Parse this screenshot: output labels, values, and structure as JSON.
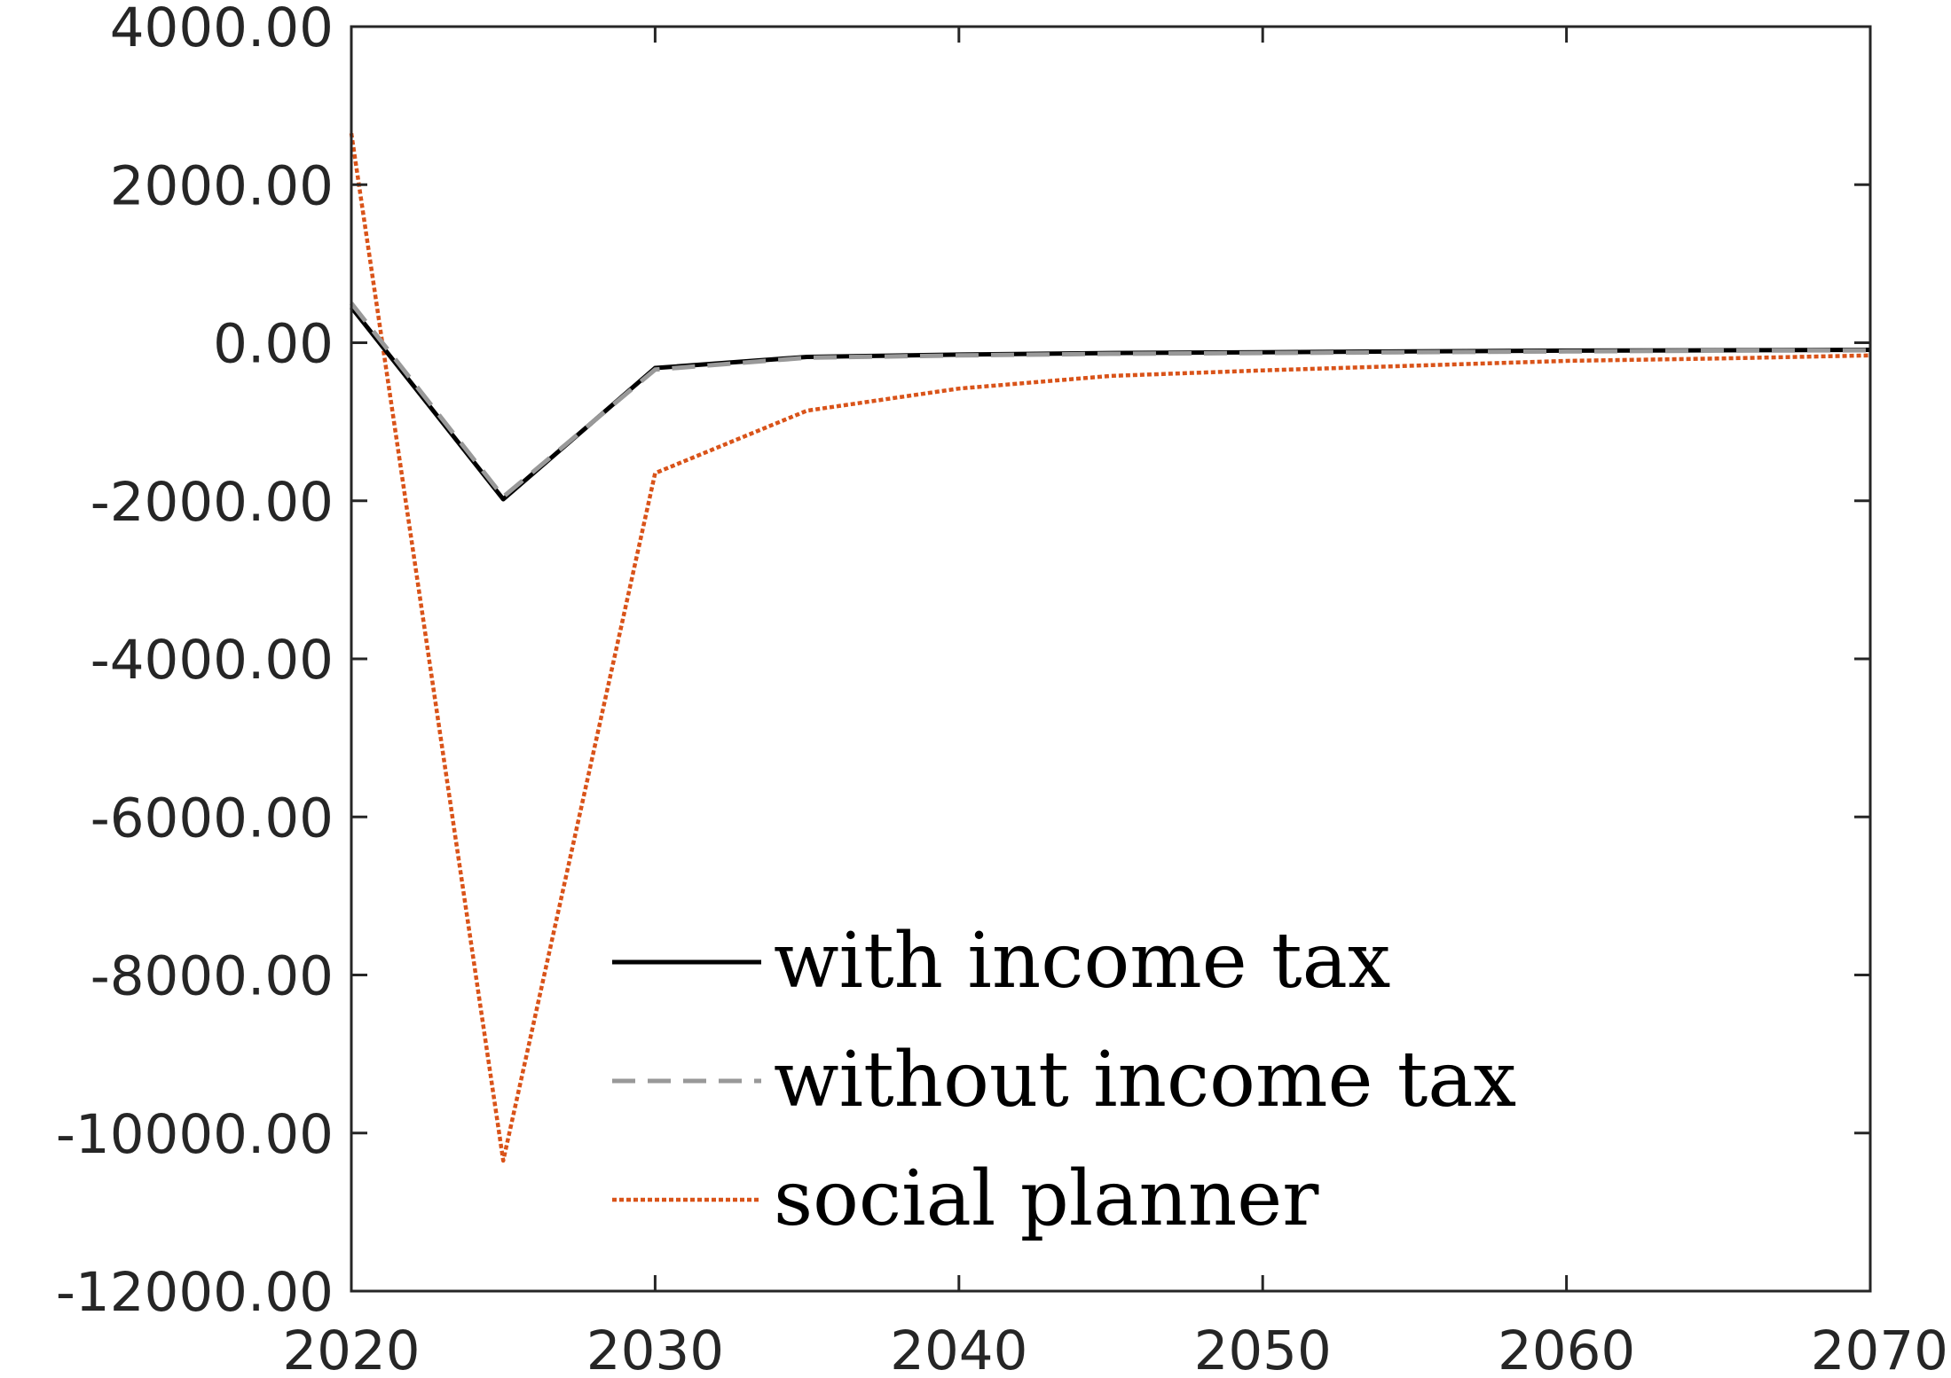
{
  "chart_data": {
    "type": "line",
    "title": "",
    "xlabel": "",
    "ylabel": "",
    "xlim": [
      2020,
      2070
    ],
    "ylim": [
      -12000,
      4000
    ],
    "xticks": [
      2020,
      2030,
      2040,
      2050,
      2060,
      2070
    ],
    "yticks": [
      4000,
      2000,
      0,
      -2000,
      -4000,
      -6000,
      -8000,
      -10000,
      -12000
    ],
    "xtick_labels": [
      "2020",
      "2030",
      "2040",
      "2050",
      "2060",
      "2070"
    ],
    "ytick_labels": [
      "4000.00",
      "2000.00",
      "0.00",
      "-2000.00",
      "-4000.00",
      "-6000.00",
      "-8000.00",
      "-10000.00",
      "-12000.00"
    ],
    "grid": false,
    "legend_position": "lower-center",
    "series": [
      {
        "name": "with income tax",
        "color": "#000000",
        "style": "solid",
        "x": [
          2020,
          2025,
          2030,
          2035,
          2040,
          2045,
          2050,
          2055,
          2060,
          2065,
          2070
        ],
        "y": [
          450,
          -1980,
          -320,
          -180,
          -150,
          -130,
          -120,
          -110,
          -100,
          -95,
          -90
        ]
      },
      {
        "name": "without income tax",
        "color": "#999999",
        "style": "dashed",
        "x": [
          2020,
          2025,
          2030,
          2035,
          2040,
          2045,
          2050,
          2055,
          2060,
          2065,
          2070
        ],
        "y": [
          500,
          -1950,
          -340,
          -190,
          -160,
          -140,
          -130,
          -120,
          -110,
          -100,
          -95
        ]
      },
      {
        "name": "social planner",
        "color": "#D95319",
        "style": "dotted",
        "x": [
          2020,
          2025,
          2030,
          2035,
          2040,
          2045,
          2050,
          2055,
          2060,
          2065,
          2070
        ],
        "y": [
          2650,
          -10350,
          -1650,
          -860,
          -580,
          -420,
          -350,
          -290,
          -230,
          -200,
          -160
        ]
      }
    ]
  }
}
